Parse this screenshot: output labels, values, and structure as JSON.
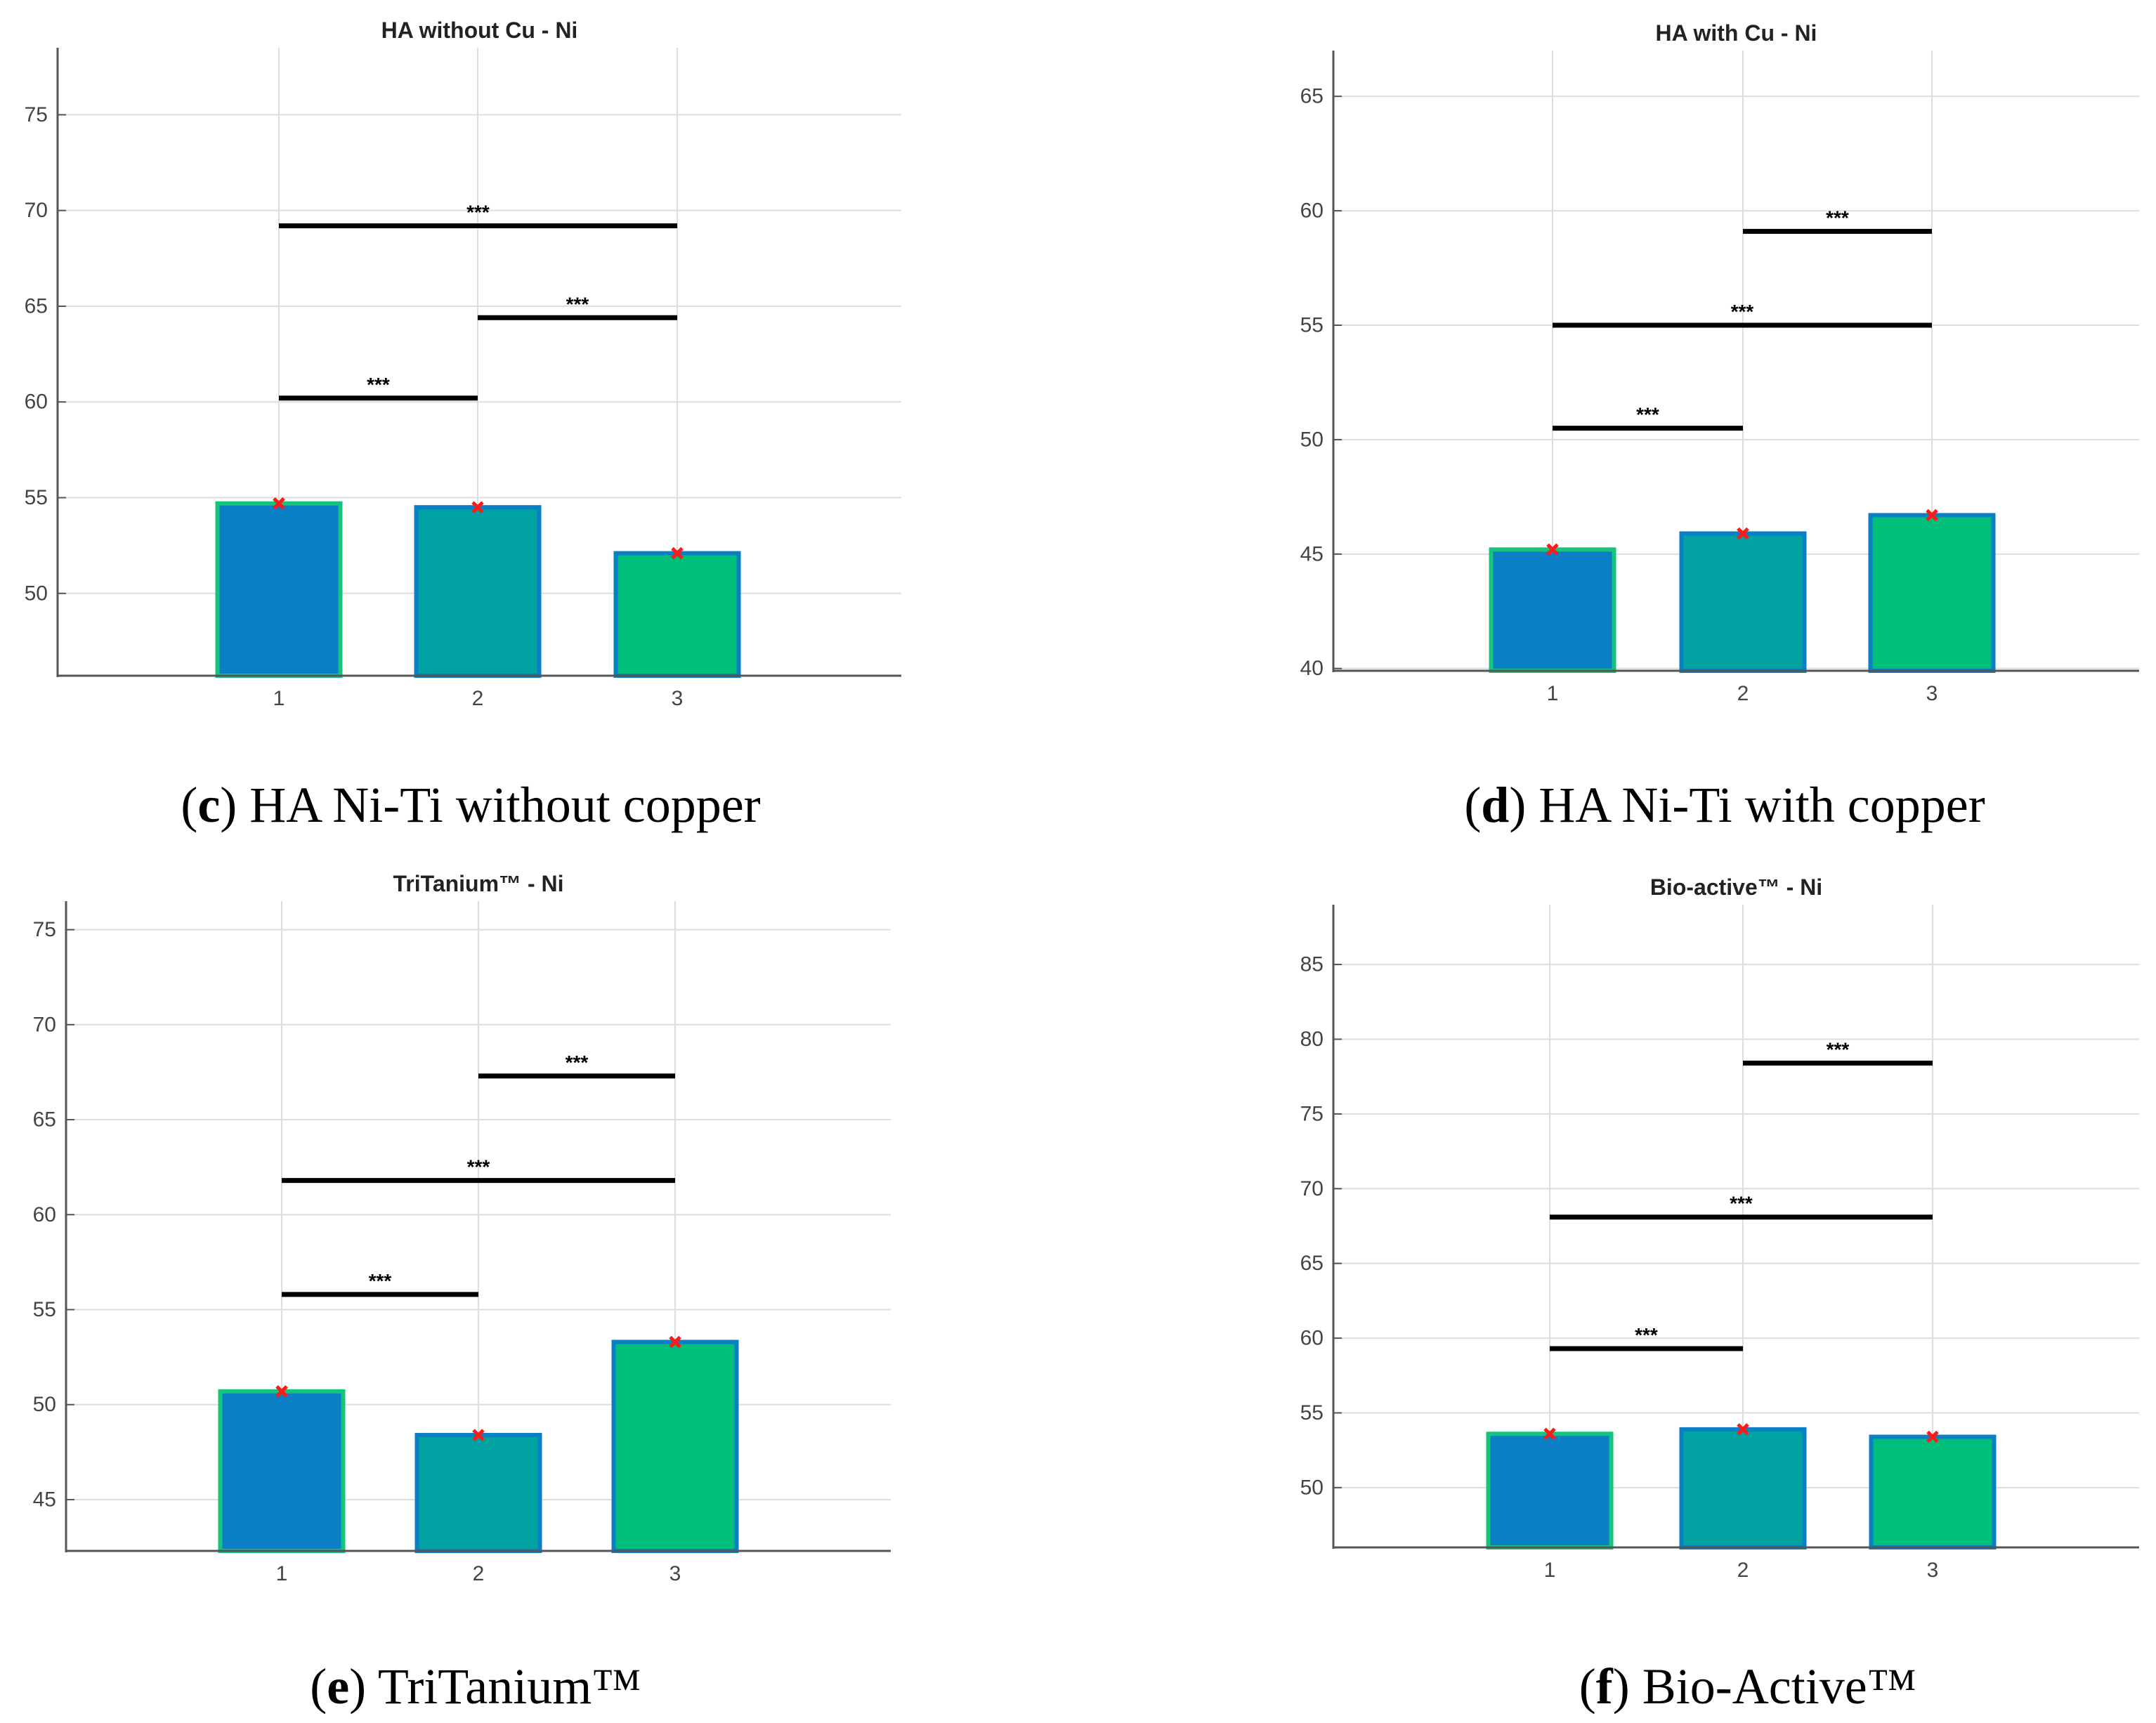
{
  "colors": {
    "bar1": "#0a7fc4",
    "bar2": "#00a2a2",
    "bar3": "#00bf7a",
    "edge_green": "#16c47e",
    "edge_blue": "#0a7fc4",
    "marker": "#ff1a1a",
    "grid": "#dedede",
    "axis": "#555555"
  },
  "chart_data": [
    {
      "type": "bar",
      "title": "HA without Cu - Ni",
      "categories": [
        "1",
        "2",
        "3"
      ],
      "values": [
        54.7,
        54.5,
        52.1
      ],
      "ylim": [
        45.7,
        78.5
      ],
      "yticks": [
        50,
        55,
        60,
        65,
        70,
        75
      ],
      "ytick_labels": [
        "50",
        "55",
        "60",
        "65",
        "70",
        "75"
      ],
      "xlabel": "",
      "ylabel": "",
      "grid": true,
      "significance": [
        {
          "from": 1,
          "to": 2,
          "y": 60.2,
          "label": "***"
        },
        {
          "from": 2,
          "to": 3,
          "y": 64.4,
          "label": "***"
        },
        {
          "from": 1,
          "to": 3,
          "y": 69.2,
          "label": "***"
        }
      ],
      "caption": {
        "letter": "c",
        "text": " HA Ni-Ti without copper"
      }
    },
    {
      "type": "bar",
      "title": "HA with Cu - Ni",
      "categories": [
        "1",
        "2",
        "3"
      ],
      "values": [
        45.2,
        45.9,
        46.7
      ],
      "ylim": [
        39.9,
        67.0
      ],
      "yticks": [
        40,
        45,
        50,
        55,
        60,
        65
      ],
      "ytick_labels": [
        "40",
        "45",
        "50",
        "55",
        "60",
        "65"
      ],
      "xlabel": "",
      "ylabel": "",
      "grid": true,
      "significance": [
        {
          "from": 1,
          "to": 2,
          "y": 50.5,
          "label": "***"
        },
        {
          "from": 1,
          "to": 3,
          "y": 55.0,
          "label": "***"
        },
        {
          "from": 2,
          "to": 3,
          "y": 59.1,
          "label": "***"
        }
      ],
      "caption": {
        "letter": "d",
        "text": " HA Ni-Ti with copper"
      }
    },
    {
      "type": "bar",
      "title": "TriTanium™ - Ni",
      "categories": [
        "1",
        "2",
        "3"
      ],
      "values": [
        50.7,
        48.4,
        53.3
      ],
      "ylim": [
        42.3,
        76.5
      ],
      "yticks": [
        45,
        50,
        55,
        60,
        65,
        70,
        75
      ],
      "ytick_labels": [
        "45",
        "50",
        "55",
        "60",
        "65",
        "70",
        "75"
      ],
      "xlabel": "",
      "ylabel": "",
      "grid": true,
      "significance": [
        {
          "from": 1,
          "to": 2,
          "y": 55.8,
          "label": "***"
        },
        {
          "from": 1,
          "to": 3,
          "y": 61.8,
          "label": "***"
        },
        {
          "from": 2,
          "to": 3,
          "y": 67.3,
          "label": "***"
        }
      ],
      "caption": {
        "letter": "e",
        "text": " TriTanium™"
      }
    },
    {
      "type": "bar",
      "title": "Bio-active™ - Ni",
      "categories": [
        "1",
        "2",
        "3"
      ],
      "values": [
        53.6,
        53.9,
        53.4
      ],
      "ylim": [
        46.0,
        89.0
      ],
      "yticks": [
        50,
        55,
        60,
        65,
        70,
        75,
        80,
        85
      ],
      "ytick_labels": [
        "50",
        "55",
        "60",
        "65",
        "70",
        "75",
        "80",
        "85"
      ],
      "xlabel": "",
      "ylabel": "",
      "grid": true,
      "significance": [
        {
          "from": 1,
          "to": 2,
          "y": 59.3,
          "label": "***"
        },
        {
          "from": 1,
          "to": 3,
          "y": 68.1,
          "label": "***"
        },
        {
          "from": 2,
          "to": 3,
          "y": 78.4,
          "label": "***"
        }
      ],
      "caption": {
        "letter": "f",
        "text": " Bio-Active™"
      }
    }
  ]
}
